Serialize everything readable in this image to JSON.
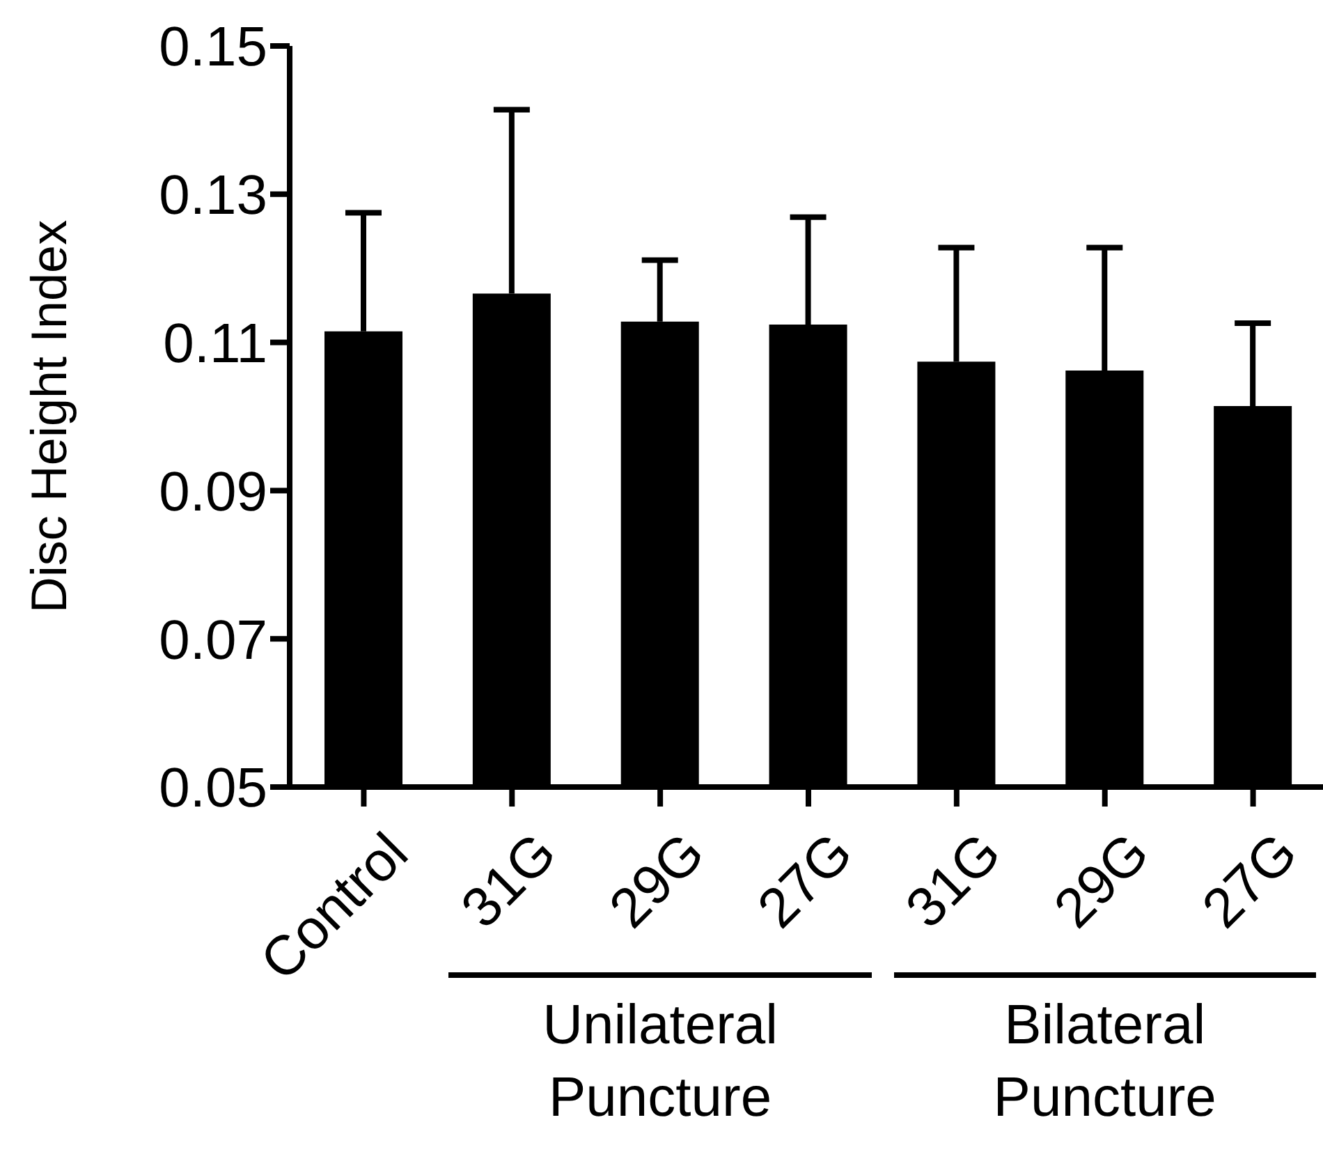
{
  "chart_data": {
    "type": "bar",
    "ylabel": "Disc Height Index",
    "categories": [
      "Control",
      "31G",
      "29G",
      "27G",
      "31G",
      "29G",
      "27G"
    ],
    "values": [
      0.1115,
      0.1166,
      0.1128,
      0.1124,
      0.1074,
      0.1062,
      0.1014
    ],
    "errors": [
      [
        0.1115,
        0.1275
      ],
      [
        0.1166,
        0.1414
      ],
      [
        0.1128,
        0.1211
      ],
      [
        0.1124,
        0.1269
      ],
      [
        0.1074,
        0.1228
      ],
      [
        0.1062,
        0.1228
      ],
      [
        0.1014,
        0.1126
      ]
    ],
    "color": "#000000",
    "ylim": [
      0.05,
      0.15
    ],
    "yticks": [
      0.05,
      0.07,
      0.09,
      0.11,
      0.13,
      0.15
    ],
    "annotations": [
      "Unilateral Puncture",
      "Bilateral Puncture"
    ]
  }
}
